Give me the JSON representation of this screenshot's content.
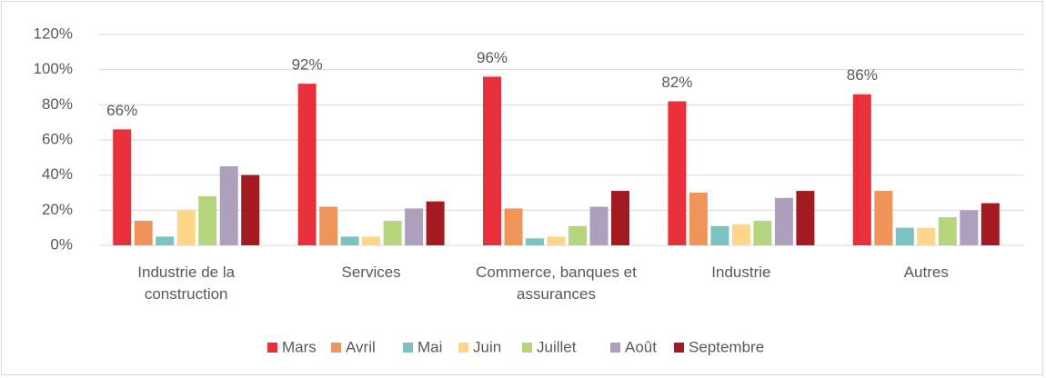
{
  "chart_data": {
    "type": "bar",
    "categories": [
      "Industrie de la construction",
      "Services",
      "Commerce, banques et assurances",
      "Industrie",
      "Autres"
    ],
    "series": [
      {
        "name": "Mars",
        "color": "#e8303a",
        "values": [
          66,
          92,
          96,
          82,
          86
        ],
        "value_labels": [
          "66%",
          "92%",
          "96%",
          "82%",
          "86%"
        ]
      },
      {
        "name": "Avril",
        "color": "#f0955a",
        "values": [
          14,
          22,
          21,
          30,
          31
        ]
      },
      {
        "name": "Mai",
        "color": "#7cc4c4",
        "values": [
          5,
          5,
          4,
          11,
          10
        ]
      },
      {
        "name": "Juin",
        "color": "#fdd68a",
        "values": [
          20,
          5,
          5,
          12,
          10
        ]
      },
      {
        "name": "Juillet",
        "color": "#b5d57f",
        "values": [
          28,
          14,
          11,
          14,
          16
        ]
      },
      {
        "name": "Août",
        "color": "#ae9fbd",
        "values": [
          45,
          21,
          22,
          27,
          20
        ]
      },
      {
        "name": "Septembre",
        "color": "#a31b20",
        "values": [
          40,
          25,
          31,
          31,
          24
        ]
      }
    ],
    "ylim": [
      0,
      120
    ],
    "yticks": [
      {
        "value": 0,
        "label": "0%"
      },
      {
        "value": 20,
        "label": "20%"
      },
      {
        "value": 40,
        "label": "40%"
      },
      {
        "value": 60,
        "label": "60%"
      },
      {
        "value": 80,
        "label": "80%"
      },
      {
        "value": 100,
        "label": "100%"
      },
      {
        "value": 120,
        "label": "120%"
      }
    ],
    "grid": true,
    "legend": "bottom"
  }
}
